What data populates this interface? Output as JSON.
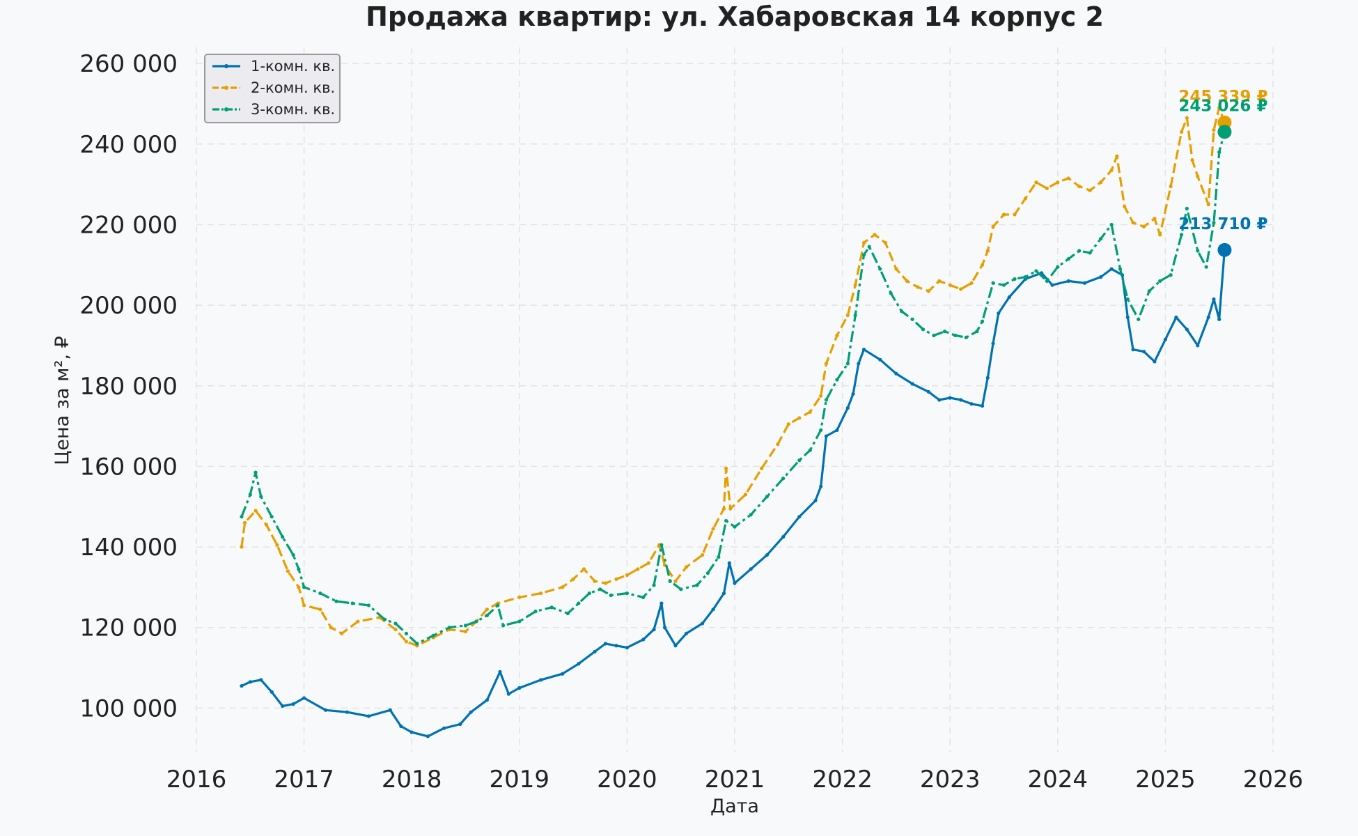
{
  "chart_data": {
    "type": "line",
    "title": "Продажа квартир: ул. Хабаровская 14 корпус 2",
    "xlabel": "Дата",
    "ylabel": "Цена за м², ₽",
    "xlim": [
      2016,
      2026
    ],
    "ylim": [
      89000,
      264000
    ],
    "x_ticks": [
      2016,
      2017,
      2018,
      2019,
      2020,
      2021,
      2022,
      2023,
      2024,
      2025,
      2026
    ],
    "x_tick_labels": [
      "2016",
      "2017",
      "2018",
      "2019",
      "2020",
      "2021",
      "2022",
      "2023",
      "2024",
      "2025",
      "2026"
    ],
    "y_ticks": [
      100000,
      120000,
      140000,
      160000,
      180000,
      200000,
      220000,
      240000,
      260000
    ],
    "y_tick_labels": [
      "100 000",
      "120 000",
      "140 000",
      "160 000",
      "180 000",
      "200 000",
      "220 000",
      "240 000",
      "260 000"
    ],
    "grid": true,
    "legend_position": "top-left",
    "series": [
      {
        "name": "1-комн. кв.",
        "color": "#0072b2",
        "dash": "solid",
        "end_value": 213710,
        "end_label": "213 710 ₽",
        "points": [
          [
            2016.42,
            105500
          ],
          [
            2016.5,
            106500
          ],
          [
            2016.6,
            107000
          ],
          [
            2016.7,
            104000
          ],
          [
            2016.8,
            100500
          ],
          [
            2016.9,
            101000
          ],
          [
            2017.0,
            102500
          ],
          [
            2017.2,
            99500
          ],
          [
            2017.4,
            99000
          ],
          [
            2017.6,
            98000
          ],
          [
            2017.8,
            99500
          ],
          [
            2017.9,
            95500
          ],
          [
            2018.0,
            94000
          ],
          [
            2018.15,
            93000
          ],
          [
            2018.3,
            95000
          ],
          [
            2018.45,
            96000
          ],
          [
            2018.55,
            99000
          ],
          [
            2018.7,
            102000
          ],
          [
            2018.82,
            109000
          ],
          [
            2018.9,
            103500
          ],
          [
            2019.0,
            105000
          ],
          [
            2019.2,
            107000
          ],
          [
            2019.4,
            108500
          ],
          [
            2019.55,
            111000
          ],
          [
            2019.7,
            114000
          ],
          [
            2019.8,
            116000
          ],
          [
            2019.9,
            115500
          ],
          [
            2020.0,
            115000
          ],
          [
            2020.15,
            117000
          ],
          [
            2020.25,
            119500
          ],
          [
            2020.32,
            126000
          ],
          [
            2020.35,
            120000
          ],
          [
            2020.45,
            115500
          ],
          [
            2020.55,
            118500
          ],
          [
            2020.7,
            121000
          ],
          [
            2020.8,
            124500
          ],
          [
            2020.9,
            128500
          ],
          [
            2020.95,
            136000
          ],
          [
            2021.0,
            131000
          ],
          [
            2021.15,
            134500
          ],
          [
            2021.3,
            138000
          ],
          [
            2021.45,
            142500
          ],
          [
            2021.6,
            147500
          ],
          [
            2021.75,
            151500
          ],
          [
            2021.8,
            155000
          ],
          [
            2021.85,
            167500
          ],
          [
            2021.95,
            169000
          ],
          [
            2022.05,
            174500
          ],
          [
            2022.1,
            178000
          ],
          [
            2022.15,
            185500
          ],
          [
            2022.2,
            189000
          ],
          [
            2022.35,
            186500
          ],
          [
            2022.5,
            183000
          ],
          [
            2022.65,
            180500
          ],
          [
            2022.8,
            178500
          ],
          [
            2022.9,
            176500
          ],
          [
            2023.0,
            177000
          ],
          [
            2023.1,
            176500
          ],
          [
            2023.2,
            175500
          ],
          [
            2023.3,
            175000
          ],
          [
            2023.35,
            182000
          ],
          [
            2023.4,
            190500
          ],
          [
            2023.45,
            198000
          ],
          [
            2023.55,
            202000
          ],
          [
            2023.7,
            206500
          ],
          [
            2023.85,
            208000
          ],
          [
            2023.95,
            205000
          ],
          [
            2024.1,
            206000
          ],
          [
            2024.25,
            205500
          ],
          [
            2024.4,
            207000
          ],
          [
            2024.5,
            209000
          ],
          [
            2024.6,
            207500
          ],
          [
            2024.65,
            197000
          ],
          [
            2024.7,
            189000
          ],
          [
            2024.8,
            188500
          ],
          [
            2024.9,
            186000
          ],
          [
            2025.0,
            191500
          ],
          [
            2025.1,
            197000
          ],
          [
            2025.2,
            194000
          ],
          [
            2025.3,
            190000
          ],
          [
            2025.4,
            197000
          ],
          [
            2025.45,
            201500
          ],
          [
            2025.5,
            196500
          ],
          [
            2025.55,
            213710
          ]
        ]
      },
      {
        "name": "2-комн. кв.",
        "color": "#e69f00",
        "dash": "dashed",
        "end_value": 245339,
        "end_label": "245 339 ₽",
        "points": [
          [
            2016.42,
            140000
          ],
          [
            2016.45,
            146000
          ],
          [
            2016.55,
            149000
          ],
          [
            2016.65,
            145500
          ],
          [
            2016.75,
            140500
          ],
          [
            2016.85,
            134000
          ],
          [
            2016.95,
            130000
          ],
          [
            2017.0,
            125500
          ],
          [
            2017.15,
            124500
          ],
          [
            2017.25,
            120000
          ],
          [
            2017.35,
            118500
          ],
          [
            2017.5,
            121500
          ],
          [
            2017.7,
            122500
          ],
          [
            2017.85,
            119500
          ],
          [
            2017.95,
            116500
          ],
          [
            2018.05,
            115500
          ],
          [
            2018.2,
            117500
          ],
          [
            2018.35,
            119500
          ],
          [
            2018.5,
            119000
          ],
          [
            2018.6,
            121500
          ],
          [
            2018.7,
            124500
          ],
          [
            2018.8,
            126000
          ],
          [
            2019.0,
            127500
          ],
          [
            2019.2,
            128500
          ],
          [
            2019.4,
            130000
          ],
          [
            2019.5,
            132000
          ],
          [
            2019.6,
            134500
          ],
          [
            2019.7,
            131500
          ],
          [
            2019.8,
            131000
          ],
          [
            2019.9,
            132000
          ],
          [
            2020.0,
            133000
          ],
          [
            2020.1,
            134500
          ],
          [
            2020.2,
            136000
          ],
          [
            2020.3,
            140500
          ],
          [
            2020.35,
            135500
          ],
          [
            2020.45,
            131500
          ],
          [
            2020.55,
            135000
          ],
          [
            2020.7,
            138000
          ],
          [
            2020.8,
            144500
          ],
          [
            2020.9,
            149500
          ],
          [
            2020.92,
            159500
          ],
          [
            2020.96,
            149500
          ],
          [
            2021.1,
            153000
          ],
          [
            2021.25,
            159500
          ],
          [
            2021.4,
            165500
          ],
          [
            2021.5,
            170500
          ],
          [
            2021.6,
            172000
          ],
          [
            2021.7,
            173500
          ],
          [
            2021.8,
            177500
          ],
          [
            2021.85,
            185500
          ],
          [
            2021.95,
            192500
          ],
          [
            2022.05,
            197500
          ],
          [
            2022.12,
            205000
          ],
          [
            2022.2,
            215500
          ],
          [
            2022.3,
            217500
          ],
          [
            2022.4,
            215500
          ],
          [
            2022.5,
            209000
          ],
          [
            2022.6,
            206000
          ],
          [
            2022.7,
            204500
          ],
          [
            2022.8,
            203500
          ],
          [
            2022.9,
            206000
          ],
          [
            2023.0,
            205000
          ],
          [
            2023.1,
            204000
          ],
          [
            2023.2,
            205500
          ],
          [
            2023.3,
            210000
          ],
          [
            2023.35,
            213500
          ],
          [
            2023.4,
            219500
          ],
          [
            2023.5,
            222500
          ],
          [
            2023.6,
            222500
          ],
          [
            2023.7,
            226500
          ],
          [
            2023.8,
            230500
          ],
          [
            2023.9,
            229000
          ],
          [
            2024.0,
            230500
          ],
          [
            2024.1,
            231500
          ],
          [
            2024.2,
            229500
          ],
          [
            2024.3,
            228500
          ],
          [
            2024.4,
            230500
          ],
          [
            2024.5,
            233500
          ],
          [
            2024.55,
            237000
          ],
          [
            2024.62,
            224500
          ],
          [
            2024.7,
            220500
          ],
          [
            2024.8,
            219500
          ],
          [
            2024.9,
            221500
          ],
          [
            2024.95,
            217500
          ],
          [
            2025.05,
            229500
          ],
          [
            2025.15,
            243000
          ],
          [
            2025.2,
            246500
          ],
          [
            2025.25,
            236000
          ],
          [
            2025.3,
            232000
          ],
          [
            2025.4,
            225000
          ],
          [
            2025.45,
            243500
          ],
          [
            2025.5,
            249000
          ],
          [
            2025.55,
            245339
          ]
        ]
      },
      {
        "name": "3-комн. кв.",
        "color": "#009e73",
        "dash": "dashdot",
        "end_value": 243026,
        "end_label": "243 026 ₽",
        "points": [
          [
            2016.42,
            147500
          ],
          [
            2016.5,
            153000
          ],
          [
            2016.55,
            158500
          ],
          [
            2016.6,
            152500
          ],
          [
            2016.7,
            147500
          ],
          [
            2016.8,
            142500
          ],
          [
            2016.9,
            138000
          ],
          [
            2016.95,
            134500
          ],
          [
            2017.0,
            130000
          ],
          [
            2017.15,
            128500
          ],
          [
            2017.3,
            126500
          ],
          [
            2017.45,
            126000
          ],
          [
            2017.6,
            125500
          ],
          [
            2017.75,
            122000
          ],
          [
            2017.85,
            121000
          ],
          [
            2017.95,
            118500
          ],
          [
            2018.05,
            116000
          ],
          [
            2018.2,
            118000
          ],
          [
            2018.35,
            120000
          ],
          [
            2018.5,
            120500
          ],
          [
            2018.6,
            121500
          ],
          [
            2018.7,
            123000
          ],
          [
            2018.8,
            125500
          ],
          [
            2018.85,
            120500
          ],
          [
            2019.0,
            121500
          ],
          [
            2019.15,
            124000
          ],
          [
            2019.3,
            125000
          ],
          [
            2019.45,
            123500
          ],
          [
            2019.55,
            126000
          ],
          [
            2019.65,
            128500
          ],
          [
            2019.75,
            129500
          ],
          [
            2019.85,
            128000
          ],
          [
            2020.0,
            128500
          ],
          [
            2020.15,
            127500
          ],
          [
            2020.25,
            130500
          ],
          [
            2020.32,
            140500
          ],
          [
            2020.4,
            131500
          ],
          [
            2020.5,
            129500
          ],
          [
            2020.65,
            130500
          ],
          [
            2020.75,
            133500
          ],
          [
            2020.85,
            137500
          ],
          [
            2020.92,
            146500
          ],
          [
            2021.0,
            145000
          ],
          [
            2021.15,
            148000
          ],
          [
            2021.3,
            152500
          ],
          [
            2021.45,
            157000
          ],
          [
            2021.6,
            161500
          ],
          [
            2021.7,
            164000
          ],
          [
            2021.8,
            169000
          ],
          [
            2021.85,
            176500
          ],
          [
            2021.95,
            181500
          ],
          [
            2022.05,
            185500
          ],
          [
            2022.12,
            197500
          ],
          [
            2022.2,
            212500
          ],
          [
            2022.25,
            214500
          ],
          [
            2022.35,
            209000
          ],
          [
            2022.45,
            203000
          ],
          [
            2022.55,
            198500
          ],
          [
            2022.65,
            196500
          ],
          [
            2022.75,
            194000
          ],
          [
            2022.85,
            192500
          ],
          [
            2022.95,
            193500
          ],
          [
            2023.05,
            192500
          ],
          [
            2023.15,
            192000
          ],
          [
            2023.25,
            193500
          ],
          [
            2023.3,
            196000
          ],
          [
            2023.4,
            205500
          ],
          [
            2023.5,
            205000
          ],
          [
            2023.6,
            206500
          ],
          [
            2023.7,
            207000
          ],
          [
            2023.8,
            208500
          ],
          [
            2023.9,
            206000
          ],
          [
            2024.0,
            209500
          ],
          [
            2024.1,
            211500
          ],
          [
            2024.2,
            213500
          ],
          [
            2024.3,
            213000
          ],
          [
            2024.4,
            216500
          ],
          [
            2024.5,
            220000
          ],
          [
            2024.58,
            209000
          ],
          [
            2024.65,
            201500
          ],
          [
            2024.75,
            196500
          ],
          [
            2024.85,
            203500
          ],
          [
            2024.95,
            206000
          ],
          [
            2025.05,
            207500
          ],
          [
            2025.15,
            217500
          ],
          [
            2025.2,
            224000
          ],
          [
            2025.3,
            213500
          ],
          [
            2025.38,
            209500
          ],
          [
            2025.45,
            220500
          ],
          [
            2025.5,
            238000
          ],
          [
            2025.55,
            243026
          ]
        ]
      }
    ]
  }
}
